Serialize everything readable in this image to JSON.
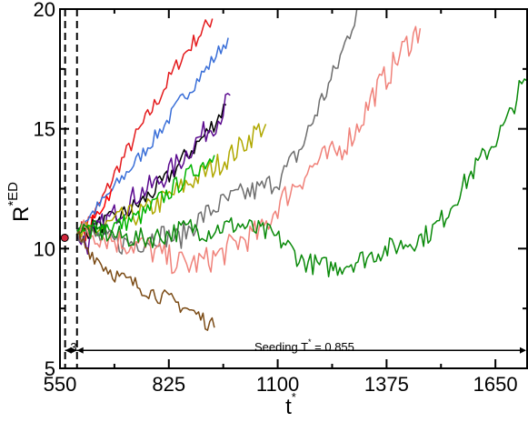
{
  "chart_data": {
    "type": "line",
    "title": "",
    "xlabel": "t",
    "xlabel_sup": "*",
    "ylabel": "R",
    "ylabel_sup": "*ED",
    "xlim": [
      550,
      1730
    ],
    "ylim": [
      5,
      20
    ],
    "x_ticks": [
      550,
      825,
      1100,
      1375,
      1650
    ],
    "y_ticks": [
      5,
      10,
      15,
      20
    ],
    "grid": false,
    "legend": "none",
    "annotations": {
      "seeding_text": "Seeding T",
      "seeding_sup": "*",
      "seeding_value": " = 0.855",
      "interval_label": "3",
      "dashed_lines_x": [
        563,
        593
      ],
      "seeding_arrow_x": [
        593,
        1730
      ],
      "seeding_arrow_y": 5.75,
      "marker": {
        "x": 562,
        "y": 10.45,
        "color": "#d0283c"
      }
    },
    "series": [
      {
        "color": "#e41a1c",
        "points": [
          [
            593,
            10.6
          ],
          [
            640,
            11.5
          ],
          [
            700,
            13.5
          ],
          [
            760,
            15.2
          ],
          [
            800,
            16.3
          ],
          [
            850,
            17.8
          ],
          [
            900,
            18.9
          ],
          [
            935,
            19.6
          ]
        ],
        "noise": 0.35
      },
      {
        "color": "#3a6fd8",
        "points": [
          [
            593,
            10.8
          ],
          [
            650,
            11.8
          ],
          [
            700,
            12.8
          ],
          [
            760,
            14.0
          ],
          [
            820,
            15.3
          ],
          [
            860,
            16.3
          ],
          [
            920,
            17.5
          ],
          [
            975,
            18.8
          ]
        ],
        "noise": 0.3
      },
      {
        "color": "#ff0000",
        "points": [
          [
            593,
            10.5
          ],
          [
            620,
            10.7
          ],
          [
            650,
            11.6
          ],
          [
            680,
            12.5
          ]
        ],
        "noise": 0.35
      },
      {
        "color": "#000000",
        "points": [
          [
            593,
            10.6
          ],
          [
            650,
            11.0
          ],
          [
            700,
            11.3
          ],
          [
            760,
            12.0
          ],
          [
            820,
            12.9
          ],
          [
            870,
            13.9
          ],
          [
            920,
            14.8
          ],
          [
            970,
            16.0
          ]
        ],
        "noise": 0.4
      },
      {
        "color": "#5b0a8f",
        "points": [
          [
            593,
            10.6
          ],
          [
            620,
            10.2
          ],
          [
            650,
            10.9
          ],
          [
            700,
            11.6
          ],
          [
            740,
            12.2
          ],
          [
            800,
            12.8
          ],
          [
            850,
            13.6
          ],
          [
            900,
            14.6
          ],
          [
            950,
            15.4
          ],
          [
            980,
            16.4
          ]
        ],
        "noise": 0.5
      },
      {
        "color": "#b0a800",
        "points": [
          [
            593,
            10.5
          ],
          [
            650,
            10.8
          ],
          [
            700,
            11.2
          ],
          [
            760,
            11.5
          ],
          [
            820,
            12.1
          ],
          [
            880,
            12.8
          ],
          [
            930,
            13.3
          ],
          [
            990,
            14.0
          ],
          [
            1040,
            14.8
          ],
          [
            1070,
            15.2
          ]
        ],
        "noise": 0.5
      },
      {
        "color": "#00b400",
        "points": [
          [
            593,
            10.6
          ],
          [
            650,
            10.9
          ],
          [
            700,
            11.0
          ],
          [
            760,
            11.4
          ],
          [
            800,
            12.0
          ],
          [
            850,
            12.7
          ],
          [
            900,
            13.4
          ],
          [
            940,
            13.9
          ]
        ],
        "noise": 0.4
      },
      {
        "color": "#6e6e6e",
        "points": [
          [
            593,
            10.8
          ],
          [
            640,
            10.5
          ],
          [
            700,
            10.2
          ],
          [
            760,
            10.3
          ],
          [
            800,
            10.6
          ],
          [
            850,
            10.4
          ],
          [
            900,
            11.2
          ],
          [
            950,
            11.8
          ],
          [
            1000,
            12.2
          ],
          [
            1060,
            12.5
          ],
          [
            1110,
            13.0
          ],
          [
            1160,
            14.2
          ],
          [
            1200,
            15.8
          ],
          [
            1240,
            17.2
          ],
          [
            1270,
            18.5
          ],
          [
            1300,
            20.0
          ]
        ],
        "noise": 0.5
      },
      {
        "color": "#f0827a",
        "points": [
          [
            593,
            10.8
          ],
          [
            650,
            10.6
          ],
          [
            700,
            10.3
          ],
          [
            760,
            10.1
          ],
          [
            820,
            9.6
          ],
          [
            870,
            9.3
          ],
          [
            920,
            9.5
          ],
          [
            960,
            9.8
          ],
          [
            1000,
            10.3
          ],
          [
            1060,
            10.7
          ],
          [
            1100,
            11.8
          ],
          [
            1150,
            12.8
          ],
          [
            1200,
            13.6
          ],
          [
            1250,
            14.0
          ],
          [
            1300,
            15.0
          ],
          [
            1340,
            16.4
          ],
          [
            1380,
            17.3
          ],
          [
            1420,
            18.4
          ],
          [
            1460,
            19.2
          ]
        ],
        "noise": 0.6
      },
      {
        "color": "#0a8a0a",
        "points": [
          [
            593,
            10.8
          ],
          [
            650,
            10.7
          ],
          [
            700,
            10.5
          ],
          [
            760,
            10.4
          ],
          [
            820,
            10.6
          ],
          [
            880,
            10.9
          ],
          [
            920,
            10.7
          ],
          [
            960,
            10.9
          ],
          [
            1000,
            11.0
          ],
          [
            1040,
            10.8
          ],
          [
            1080,
            10.6
          ],
          [
            1120,
            10.2
          ],
          [
            1160,
            9.5
          ],
          [
            1200,
            9.3
          ],
          [
            1240,
            9.2
          ],
          [
            1280,
            9.4
          ],
          [
            1320,
            9.6
          ],
          [
            1360,
            9.9
          ],
          [
            1400,
            10.1
          ],
          [
            1440,
            10.3
          ],
          [
            1480,
            10.6
          ],
          [
            1520,
            11.3
          ],
          [
            1560,
            12.4
          ],
          [
            1600,
            13.4
          ],
          [
            1640,
            14.3
          ],
          [
            1680,
            15.3
          ],
          [
            1710,
            16.6
          ],
          [
            1730,
            17.0
          ]
        ],
        "noise": 0.45
      },
      {
        "color": "#7a4a14",
        "points": [
          [
            593,
            10.6
          ],
          [
            620,
            10.0
          ],
          [
            660,
            9.3
          ],
          [
            700,
            8.8
          ],
          [
            740,
            8.5
          ],
          [
            780,
            8.2
          ],
          [
            820,
            7.9
          ],
          [
            860,
            7.6
          ],
          [
            900,
            7.2
          ],
          [
            940,
            6.7
          ]
        ],
        "noise": 0.35
      }
    ]
  }
}
